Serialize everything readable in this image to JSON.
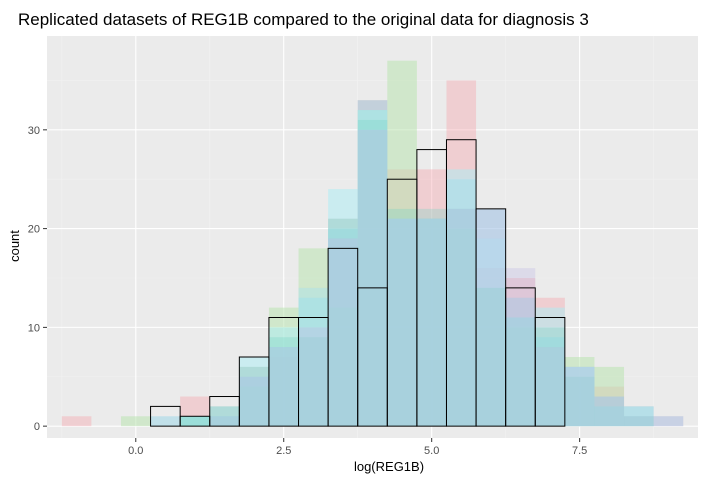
{
  "chart_data": {
    "type": "bar",
    "title": "Replicated datasets of REG1B compared to the original data for diagnosis 3",
    "xlabel": "log(REG1B)",
    "ylabel": "count",
    "xlim": [
      -1.5,
      9.5
    ],
    "ylim": [
      -1.2,
      39.5
    ],
    "x_ticks": [
      0.0,
      2.5,
      5.0,
      7.5
    ],
    "x_tick_labels": [
      "0.0",
      "2.5",
      "5.0",
      "7.5"
    ],
    "y_ticks": [
      0,
      10,
      20,
      30
    ],
    "y_tick_labels": [
      "0",
      "10",
      "20",
      "30"
    ],
    "grid": true,
    "legend": "none",
    "bin_edges": [
      -1.25,
      -0.75,
      -0.25,
      0.25,
      0.75,
      1.25,
      1.75,
      2.25,
      2.75,
      3.25,
      3.75,
      4.25,
      4.75,
      5.25,
      5.75,
      6.25,
      6.75,
      7.25,
      7.75,
      8.25,
      8.75,
      9.25
    ],
    "colors": {
      "panel": "#ebebeb",
      "grid_major": "#ffffff",
      "grid_minor": "#f2f2f2",
      "original_outline": "#000000"
    },
    "series": [
      {
        "color": "#f4a3ab",
        "alpha": 0.4,
        "values": [
          1,
          0,
          0,
          0,
          3,
          2,
          6,
          7,
          14,
          21,
          33,
          26,
          26,
          35,
          16,
          15,
          13,
          6,
          4,
          2,
          1
        ]
      },
      {
        "color": "#b9e3b0",
        "alpha": 0.55,
        "values": [
          0,
          0,
          1,
          0,
          1,
          1,
          4,
          12,
          18,
          12,
          32,
          37,
          21,
          20,
          14,
          10,
          8,
          7,
          6,
          1,
          0
        ]
      },
      {
        "color": "#8fd3e6",
        "alpha": 0.45,
        "values": [
          0,
          0,
          0,
          1,
          1,
          1,
          5,
          8,
          13,
          20,
          33,
          21,
          21,
          25,
          22,
          13,
          9,
          6,
          3,
          2,
          0
        ]
      },
      {
        "color": "#aaeef5",
        "alpha": 0.5,
        "values": [
          0,
          0,
          0,
          0,
          1,
          2,
          7,
          10,
          14,
          24,
          32,
          21,
          21,
          26,
          19,
          11,
          12,
          6,
          2,
          2,
          1
        ]
      },
      {
        "color": "#6fd4c3",
        "alpha": 0.3,
        "values": [
          0,
          0,
          0,
          0,
          1,
          2,
          6,
          9,
          9,
          21,
          31,
          22,
          22,
          22,
          14,
          11,
          10,
          5,
          2,
          1,
          0
        ]
      },
      {
        "color": "#c1b9e6",
        "alpha": 0.35,
        "values": [
          0,
          0,
          0,
          0,
          0,
          1,
          5,
          8,
          10,
          19,
          30,
          21,
          21,
          22,
          22,
          16,
          8,
          6,
          3,
          1,
          1
        ]
      }
    ],
    "original": {
      "values": [
        0,
        0,
        0,
        2,
        1,
        3,
        7,
        11,
        11,
        18,
        14,
        25,
        28,
        29,
        22,
        14,
        11,
        0,
        0,
        0,
        0
      ]
    }
  }
}
